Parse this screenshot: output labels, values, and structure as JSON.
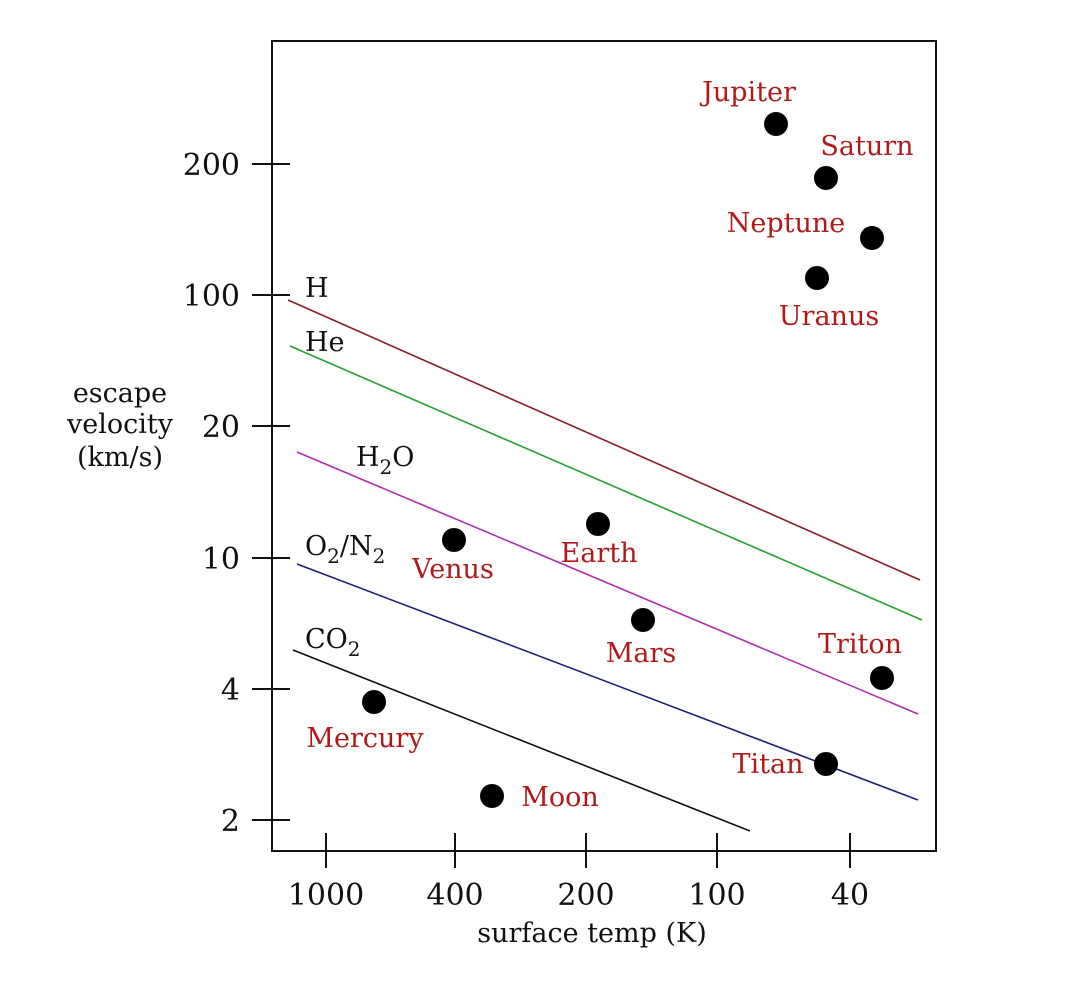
{
  "chart_data": {
    "type": "scatter",
    "xlabel": "surface temp (K)",
    "ylabel": [
      "escape",
      "velocity",
      "(km/s)"
    ],
    "x_scale": "reciprocal",
    "y_scale": "log",
    "x_ticks": [
      1000,
      400,
      200,
      100,
      40
    ],
    "y_ticks": [
      2,
      4,
      10,
      20,
      100,
      200
    ],
    "points": [
      {
        "name": "Jupiter",
        "temp": 65,
        "v": 310
      },
      {
        "name": "Saturn",
        "temp": 41,
        "v": 188
      },
      {
        "name": "Neptune",
        "temp": 33,
        "v": 145
      },
      {
        "name": "Uranus",
        "temp": 43,
        "v": 112
      },
      {
        "name": "Earth",
        "temp": 188,
        "v": 13.5
      },
      {
        "name": "Venus",
        "temp": 400,
        "v": 11.5
      },
      {
        "name": "Mars",
        "temp": 155,
        "v": 5.8
      },
      {
        "name": "Triton",
        "temp": 32,
        "v": 4.2
      },
      {
        "name": "Mercury",
        "temp": 620,
        "v": 3.3
      },
      {
        "name": "Titan",
        "temp": 41,
        "v": 2.6
      },
      {
        "name": "Moon",
        "temp": 330,
        "v": 2.3
      }
    ],
    "lines": [
      {
        "name": "H",
        "label": "H",
        "color": "#8c1c2a",
        "x": [
          1300,
          31
        ],
        "v": [
          98,
          8.3
        ]
      },
      {
        "name": "He",
        "label": "He",
        "color": "#23a22e",
        "x": [
          1300,
          31
        ],
        "v": [
          45,
          6.1
        ]
      },
      {
        "name": "H2O",
        "label_main": "H",
        "label_sub": "2",
        "label_rest": "O",
        "color": "#b02cae",
        "x": [
          1300,
          31
        ],
        "v": [
          17,
          3.6
        ]
      },
      {
        "name": "O2/N2",
        "label_main": "O",
        "label_sub": "2",
        "label_rest": "/N",
        "label_sub2": "2",
        "color": "#1b1f78",
        "x": [
          1300,
          31
        ],
        "v": [
          9.5,
          2.3
        ]
      },
      {
        "name": "CO2",
        "label_main": "CO",
        "label_sub": "2",
        "label_rest": "",
        "color": "#111111",
        "x": [
          1300,
          73
        ],
        "v": [
          5.5,
          1.9
        ]
      }
    ],
    "colors": {
      "label": "#b01a1a",
      "point": "#000000"
    },
    "grid": false
  }
}
